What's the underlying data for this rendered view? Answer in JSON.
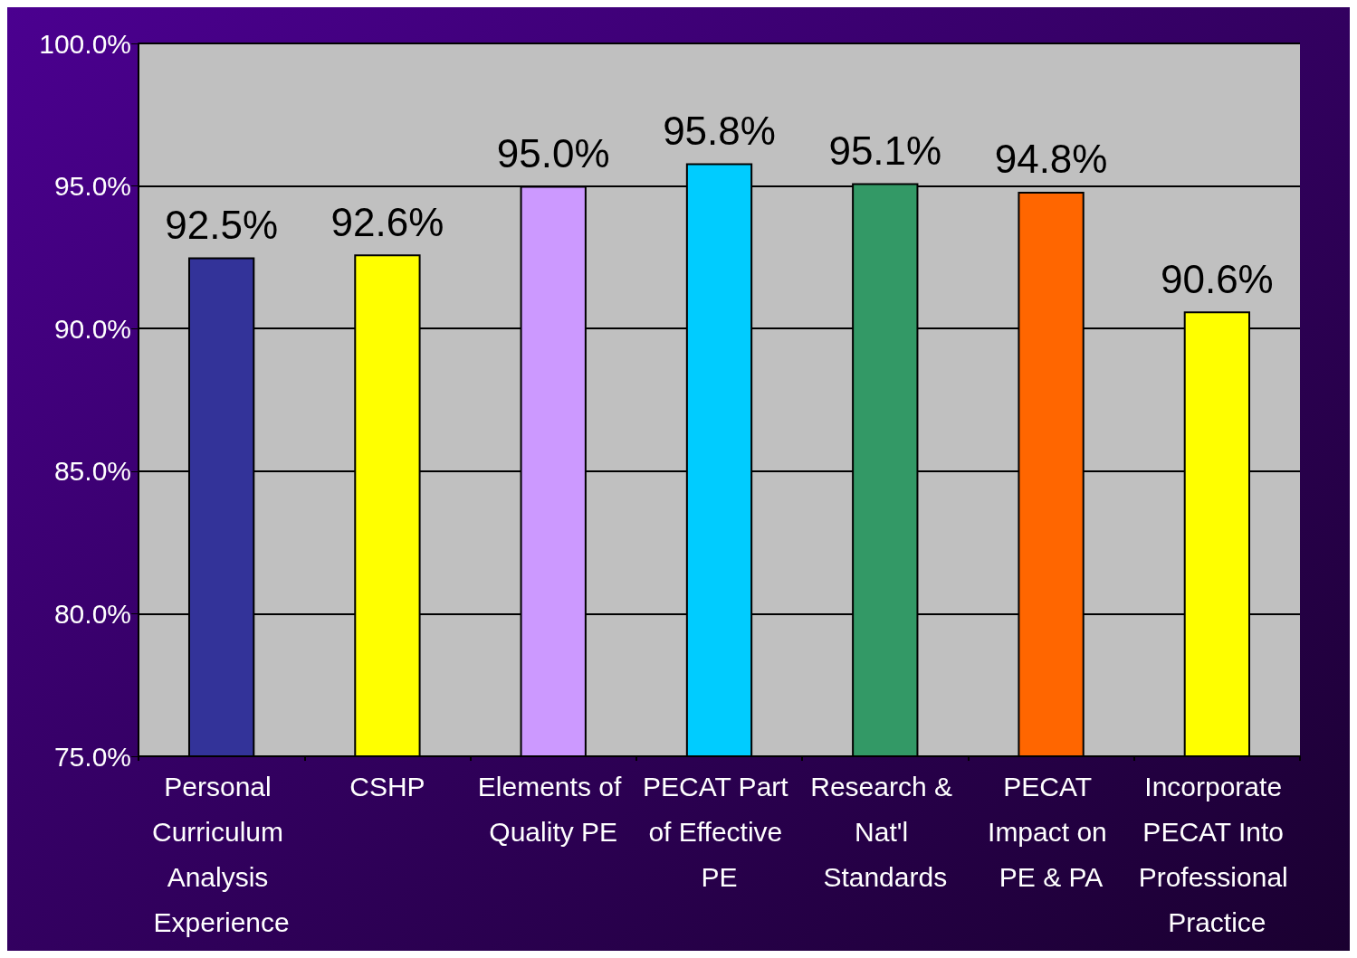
{
  "chart_data": {
    "type": "bar",
    "categories": [
      "Personal Curriculum Analysis Experience",
      "CSHP",
      "Elements of Quality PE",
      "PECAT Part of Effective PE",
      "Research & Nat'l Standards",
      "PECAT Impact on PE & PA",
      "Incorporate PECAT Into Professional Practice"
    ],
    "values": [
      92.5,
      92.6,
      95.0,
      95.8,
      95.1,
      94.8,
      90.6
    ],
    "value_labels": [
      "92.5%",
      "92.6%",
      "95.0%",
      "95.8%",
      "95.1%",
      "94.8%",
      "90.6%"
    ],
    "colors": [
      "#333399",
      "#ffff00",
      "#cc99ff",
      "#00ccff",
      "#339966",
      "#ff6600",
      "#ffff00"
    ],
    "ylim": [
      75,
      100
    ],
    "yticks": [
      {
        "value": 75,
        "label": "75.0%"
      },
      {
        "value": 80,
        "label": "80.0%"
      },
      {
        "value": 85,
        "label": "85.0%"
      },
      {
        "value": 90,
        "label": "90.0%"
      },
      {
        "value": 95,
        "label": "95.0%"
      },
      {
        "value": 100,
        "label": "100.0%"
      }
    ],
    "grid": "y"
  }
}
